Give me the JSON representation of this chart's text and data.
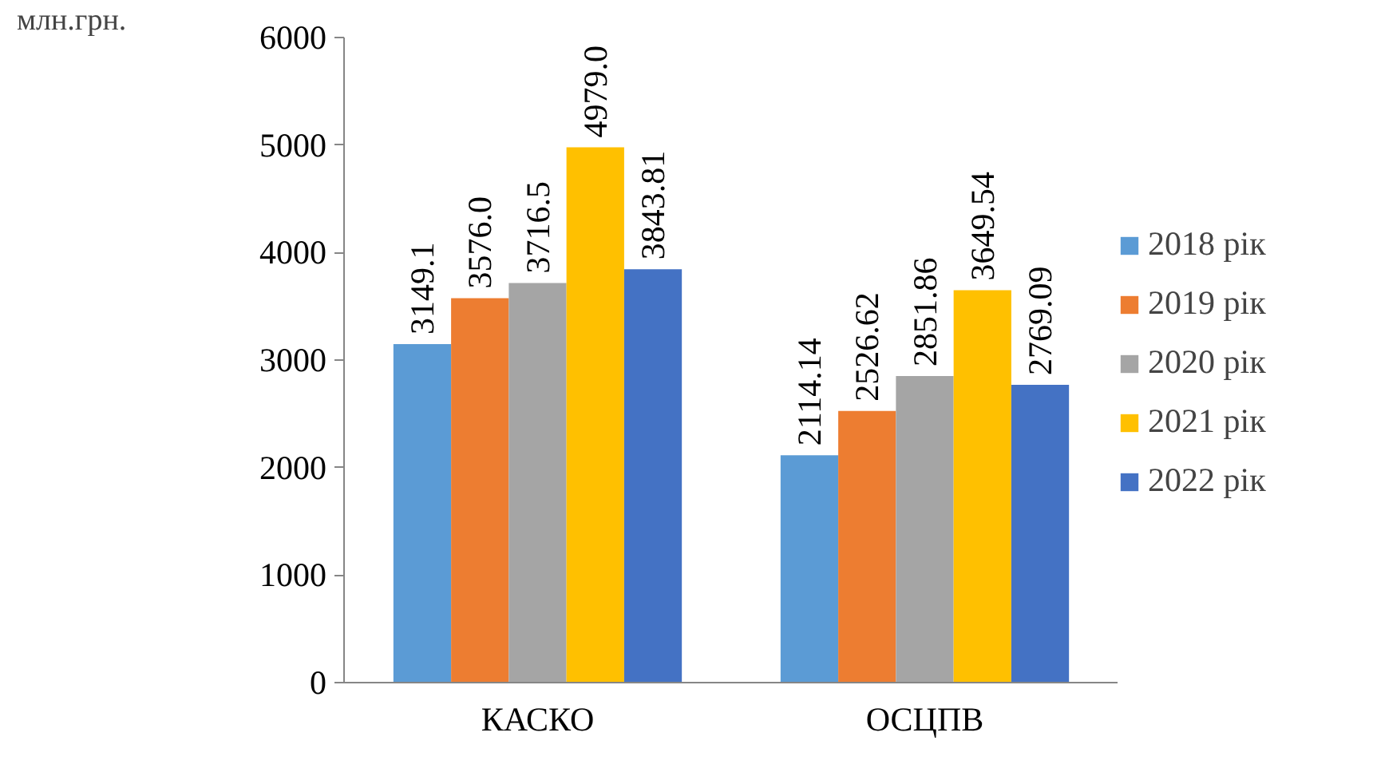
{
  "chart_data": {
    "type": "bar",
    "ylabel": "млн.грн.",
    "categories": [
      "КАСКО",
      "ОСЦПВ"
    ],
    "series": [
      {
        "name": "2018 рік",
        "color": "#5b9bd5",
        "values": [
          3149.1,
          2114.14
        ],
        "value_labels": [
          "3149.1",
          "2114.14"
        ]
      },
      {
        "name": "2019 рік",
        "color": "#ed7d31",
        "values": [
          3576.0,
          2526.62
        ],
        "value_labels": [
          "3576.0",
          "2526.62"
        ]
      },
      {
        "name": "2020 рік",
        "color": "#a5a5a5",
        "values": [
          3716.5,
          2851.86
        ],
        "value_labels": [
          "3716.5",
          "2851.86"
        ]
      },
      {
        "name": "2021 рік",
        "color": "#ffc000",
        "values": [
          4979.0,
          3649.54
        ],
        "value_labels": [
          "4979.0",
          "3649.54"
        ]
      },
      {
        "name": "2022 рік",
        "color": "#4472c4",
        "values": [
          3843.81,
          2769.09
        ],
        "value_labels": [
          "3843.81",
          "2769.09"
        ]
      }
    ],
    "ylim": [
      0,
      6000
    ],
    "yticks": [
      0,
      1000,
      2000,
      3000,
      4000,
      5000,
      6000
    ],
    "grid": false,
    "legend": "right"
  }
}
